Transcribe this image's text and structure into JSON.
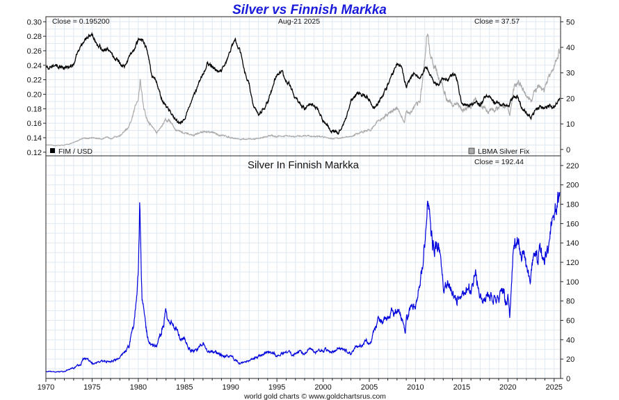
{
  "header": {
    "title": "Silver vs Finnish Markka",
    "date": "Aug-21  2025",
    "credit": "world gold charts © www.goldchartsrus.com"
  },
  "top_panel": {
    "left_close": "Close = 0.195200",
    "right_close": "Close = 37.57",
    "legend_left": "FIM / USD",
    "legend_right": "LBMA Silver Fix"
  },
  "bottom_panel": {
    "subtitle": "Silver In Finnish Markka",
    "close": "Close = 192.44"
  },
  "colors": {
    "fim": "#000000",
    "silver_usd": "#aaaaaa",
    "silver_fim": "#0000dd",
    "title": "#1a1adc"
  },
  "chart_data": [
    {
      "type": "line",
      "x_axis": {
        "min": 1970,
        "max": 2025.7,
        "ticks": [
          1970,
          1975,
          1980,
          1985,
          1990,
          1995,
          2000,
          2005,
          2010,
          2015,
          2020,
          2025
        ]
      },
      "y_left": {
        "min": 0.115,
        "max": 0.307,
        "ticks": [
          0.12,
          0.14,
          0.16,
          0.18,
          0.2,
          0.22,
          0.24,
          0.26,
          0.28,
          0.3
        ],
        "tick_labels": [
          "0.12",
          "0.14",
          "0.16",
          "0.18",
          "0.20",
          "0.22",
          "0.24",
          "0.26",
          "0.28",
          "0.30"
        ]
      },
      "y_right": {
        "min": -2.5,
        "max": 52,
        "ticks": [
          0,
          10,
          20,
          30,
          40,
          50
        ]
      },
      "grid": true,
      "series": [
        {
          "name": "FIM / USD",
          "axis": "left",
          "x": [
            1970,
            1972.9,
            1973.1,
            1973.5,
            1974,
            1974.5,
            1975,
            1975.5,
            1976,
            1976.5,
            1977,
            1977.5,
            1978,
            1978.5,
            1979,
            1979.5,
            1980,
            1980.5,
            1981,
            1981.5,
            1982,
            1982.5,
            1983,
            1983.5,
            1984,
            1984.5,
            1985,
            1985.5,
            1986,
            1986.5,
            1987,
            1987.5,
            1988,
            1988.5,
            1989,
            1989.5,
            1990,
            1990.5,
            1991,
            1991.5,
            1992,
            1992.5,
            1993,
            1993.5,
            1994,
            1994.5,
            1995,
            1995.5,
            1996,
            1996.5,
            1997,
            1997.5,
            1998,
            1998.5,
            1999,
            1999.5,
            2000,
            2000.5,
            2001,
            2001.5,
            2002,
            2002.5,
            2003,
            2003.5,
            2004,
            2004.5,
            2005,
            2005.5,
            2006,
            2006.5,
            2007,
            2007.5,
            2008,
            2008.5,
            2009,
            2009.5,
            2010,
            2010.5,
            2011,
            2011.5,
            2012,
            2012.5,
            2013,
            2013.5,
            2014,
            2014.5,
            2015,
            2015.5,
            2016,
            2016.5,
            2017,
            2017.5,
            2018,
            2018.5,
            2019,
            2019.5,
            2020,
            2020.5,
            2021,
            2021.5,
            2022,
            2022.5,
            2023,
            2023.5,
            2024,
            2024.5,
            2025,
            2025.6
          ],
          "values": [
            0.238,
            0.238,
            0.244,
            0.262,
            0.273,
            0.276,
            0.283,
            0.27,
            0.262,
            0.262,
            0.258,
            0.25,
            0.242,
            0.237,
            0.253,
            0.259,
            0.275,
            0.276,
            0.258,
            0.225,
            0.218,
            0.193,
            0.183,
            0.176,
            0.165,
            0.158,
            0.165,
            0.185,
            0.2,
            0.212,
            0.228,
            0.243,
            0.237,
            0.232,
            0.233,
            0.244,
            0.262,
            0.275,
            0.262,
            0.232,
            0.213,
            0.183,
            0.17,
            0.178,
            0.19,
            0.207,
            0.23,
            0.232,
            0.217,
            0.212,
            0.195,
            0.183,
            0.181,
            0.186,
            0.185,
            0.178,
            0.163,
            0.155,
            0.151,
            0.146,
            0.152,
            0.171,
            0.19,
            0.196,
            0.202,
            0.197,
            0.194,
            0.182,
            0.188,
            0.2,
            0.212,
            0.228,
            0.242,
            0.238,
            0.211,
            0.223,
            0.23,
            0.22,
            0.238,
            0.23,
            0.215,
            0.212,
            0.222,
            0.221,
            0.228,
            0.22,
            0.186,
            0.187,
            0.185,
            0.188,
            0.184,
            0.198,
            0.2,
            0.19,
            0.189,
            0.188,
            0.182,
            0.194,
            0.198,
            0.182,
            0.175,
            0.166,
            0.18,
            0.183,
            0.182,
            0.183,
            0.181,
            0.195
          ]
        },
        {
          "name": "LBMA Silver Fix",
          "axis": "right",
          "x": [
            1970,
            1971,
            1972,
            1973,
            1974,
            1975,
            1976,
            1977,
            1978,
            1979,
            1979.5,
            1980,
            1980.2,
            1980.6,
            1981,
            1981.5,
            1982,
            1982.5,
            1983,
            1983.5,
            1984,
            1985,
            1986,
            1987,
            1988,
            1989,
            1990,
            1991,
            1992,
            1993,
            1994,
            1995,
            1996,
            1997,
            1998,
            1999,
            2000,
            2001,
            2002,
            2003,
            2004,
            2005,
            2006,
            2007,
            2008,
            2008.8,
            2009,
            2009.5,
            2010,
            2010.5,
            2011,
            2011.3,
            2011.6,
            2012,
            2012.5,
            2013,
            2013.5,
            2014,
            2015,
            2016,
            2016.5,
            2017,
            2018,
            2019,
            2019.5,
            2020,
            2020.2,
            2020.6,
            2021,
            2021.5,
            2022,
            2022.5,
            2023,
            2023.5,
            2024,
            2024.5,
            2025,
            2025.6
          ],
          "values": [
            1.8,
            1.5,
            1.7,
            2.6,
            4.5,
            4.4,
            4.3,
            4.6,
            5.4,
            8.5,
            14,
            21,
            28,
            16,
            11,
            9,
            6.5,
            9,
            12,
            11,
            8,
            6.2,
            5.5,
            7,
            6.5,
            5.5,
            4.8,
            4.0,
            3.9,
            4.3,
            5.3,
            5.2,
            5.2,
            4.9,
            5.5,
            5.2,
            5.0,
            4.4,
            4.6,
            4.9,
            6.7,
            7.3,
            11.5,
            13.4,
            17,
            10,
            14,
            15,
            18,
            19,
            33,
            44,
            36,
            32,
            28,
            23,
            20,
            19,
            15.7,
            17,
            19,
            17,
            15.5,
            16,
            17.5,
            17,
            12,
            24,
            26,
            24,
            21,
            19,
            23,
            24,
            23,
            29,
            31,
            37.57
          ]
        }
      ]
    },
    {
      "type": "line",
      "title": "Silver In Finnish Markka",
      "x_axis": {
        "min": 1970,
        "max": 2025.7,
        "ticks": [
          1970,
          1975,
          1980,
          1985,
          1990,
          1995,
          2000,
          2005,
          2010,
          2015,
          2020,
          2025
        ]
      },
      "y_right": {
        "min": 0,
        "max": 230,
        "ticks": [
          0,
          20,
          40,
          60,
          80,
          100,
          120,
          140,
          160,
          180,
          200,
          220
        ]
      },
      "grid": true,
      "series": [
        {
          "name": "Silver In Finnish Markka",
          "x": [
            1970,
            1971,
            1972,
            1973,
            1973.8,
            1974,
            1974.5,
            1975,
            1976,
            1977,
            1978,
            1979,
            1979.5,
            1980,
            1980.15,
            1980.4,
            1980.7,
            1981,
            1981.5,
            1982,
            1982.5,
            1983,
            1983.5,
            1984,
            1984.5,
            1985,
            1985.5,
            1986,
            1986.5,
            1987,
            1987.5,
            1988,
            1989,
            1990,
            1990.5,
            1991,
            1992,
            1993,
            1994,
            1995,
            1996,
            1997,
            1998,
            1998.5,
            1999,
            2000,
            2001,
            2002,
            2003,
            2004,
            2004.5,
            2005,
            2006,
            2006.5,
            2007,
            2007.5,
            2008,
            2008.5,
            2008.9,
            2009,
            2009.5,
            2010,
            2010.5,
            2011,
            2011.3,
            2011.6,
            2012,
            2012.5,
            2013,
            2013.5,
            2014,
            2014.5,
            2015,
            2016,
            2016.5,
            2017,
            2018,
            2019,
            2019.5,
            2019.8,
            2020,
            2020.2,
            2020.6,
            2021,
            2021.5,
            2022,
            2022.5,
            2023,
            2023.5,
            2024,
            2024.3,
            2024.6,
            2025,
            2025.4,
            2025.6
          ],
          "values": [
            7.5,
            6.4,
            7.0,
            10.9,
            15,
            20,
            19,
            16,
            17,
            18,
            21,
            34,
            55,
            110,
            175,
            80,
            62,
            45,
            35,
            32,
            48,
            70,
            60,
            55,
            42,
            40,
            32,
            28,
            30,
            35,
            28,
            28,
            24,
            22,
            19,
            16,
            18,
            22,
            28,
            24,
            26,
            25,
            27,
            32,
            28,
            30,
            28,
            30,
            26,
            34,
            37,
            38,
            60,
            58,
            62,
            68,
            72,
            65,
            45,
            60,
            70,
            80,
            100,
            140,
            190,
            160,
            135,
            130,
            100,
            95,
            90,
            85,
            85,
            90,
            110,
            90,
            82,
            85,
            90,
            75,
            84,
            65,
            140,
            140,
            130,
            115,
            110,
            125,
            128,
            125,
            140,
            160,
            170,
            185,
            192.44
          ]
        }
      ]
    }
  ]
}
